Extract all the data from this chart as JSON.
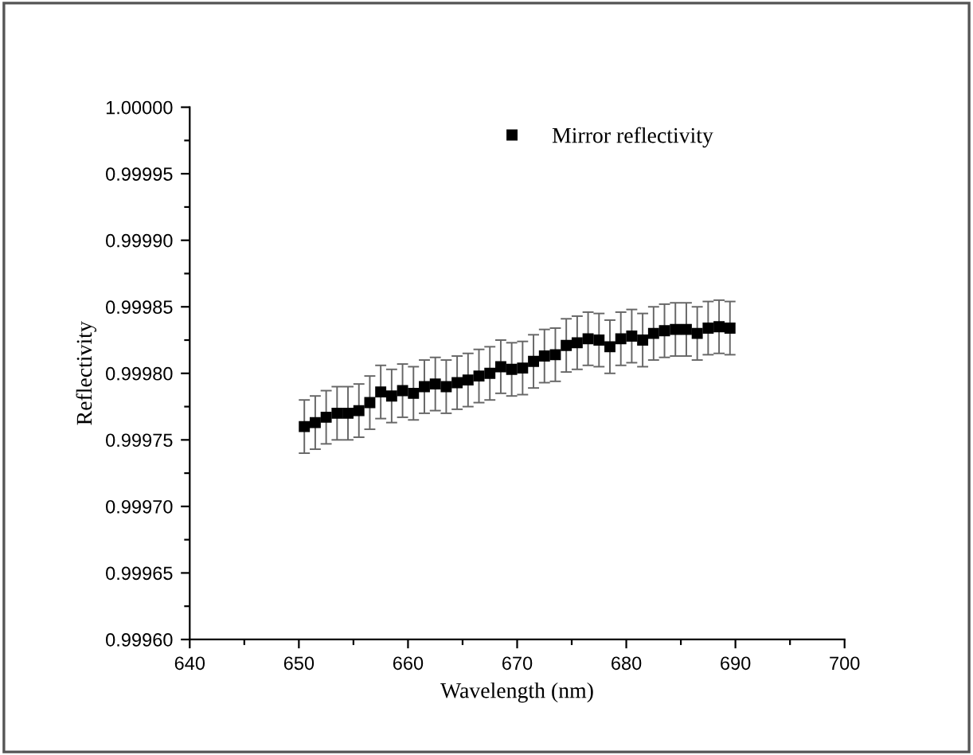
{
  "chart_data": {
    "type": "scatter",
    "xlabel": "Wavelength (nm)",
    "ylabel": "Reflectivity",
    "xlim": [
      640,
      700
    ],
    "xticks": [
      640,
      {
        "value": 645,
        "label": null
      },
      650,
      {
        "value": 655,
        "label": null
      },
      660,
      {
        "value": 665,
        "label": null
      },
      670,
      {
        "value": 675,
        "label": null
      },
      680,
      {
        "value": 685,
        "label": null
      },
      690,
      {
        "value": 695,
        "label": null
      },
      700
    ],
    "ylim": [
      0.9996,
      1.0
    ],
    "yticks": [
      {
        "value": 0.9996,
        "label": "0.99960"
      },
      {
        "value": 0.999625,
        "label": null
      },
      {
        "value": 0.99965,
        "label": "0.99965"
      },
      {
        "value": 0.999675,
        "label": null
      },
      {
        "value": 0.9997,
        "label": "0.99970"
      },
      {
        "value": 0.999725,
        "label": null
      },
      {
        "value": 0.99975,
        "label": "0.99975"
      },
      {
        "value": 0.999775,
        "label": null
      },
      {
        "value": 0.9998,
        "label": "0.99980"
      },
      {
        "value": 0.999825,
        "label": null
      },
      {
        "value": 0.99985,
        "label": "0.99985"
      },
      {
        "value": 0.999875,
        "label": null
      },
      {
        "value": 0.9999,
        "label": "0.99990"
      },
      {
        "value": 0.999925,
        "label": null
      },
      {
        "value": 0.99995,
        "label": "0.99995"
      },
      {
        "value": 0.999975,
        "label": null
      },
      {
        "value": 1.0,
        "label": "1.00000"
      }
    ],
    "grid": false,
    "legend": "top right",
    "marker": "square",
    "series": [
      {
        "name": "Mirror reflectivity",
        "color": "#000000",
        "x": [
          650.5,
          651.5,
          652.5,
          653.5,
          654.5,
          655.5,
          656.5,
          657.5,
          658.5,
          659.5,
          660.5,
          661.5,
          662.5,
          663.5,
          664.5,
          665.5,
          666.5,
          667.5,
          668.5,
          669.5,
          670.5,
          671.5,
          672.5,
          673.5,
          674.5,
          675.5,
          676.5,
          677.5,
          678.5,
          679.5,
          680.5,
          681.5,
          682.5,
          683.5,
          684.5,
          685.5,
          686.5,
          687.5,
          688.5,
          689.5
        ],
        "values": [
          0.99976,
          0.999763,
          0.999767,
          0.99977,
          0.99977,
          0.999772,
          0.999778,
          0.999786,
          0.999783,
          0.999787,
          0.999785,
          0.99979,
          0.999792,
          0.99979,
          0.999793,
          0.999795,
          0.999798,
          0.9998,
          0.999805,
          0.999803,
          0.999804,
          0.999809,
          0.999813,
          0.999814,
          0.999821,
          0.999823,
          0.999826,
          0.999825,
          0.99982,
          0.999826,
          0.999828,
          0.999825,
          0.99983,
          0.999832,
          0.999833,
          0.999833,
          0.99983,
          0.999834,
          0.999835,
          0.999834
        ],
        "errors": [
          2e-05,
          2e-05,
          2e-05,
          2e-05,
          2e-05,
          2e-05,
          2e-05,
          2e-05,
          2e-05,
          2e-05,
          2e-05,
          2e-05,
          2e-05,
          2e-05,
          2e-05,
          2e-05,
          2e-05,
          2e-05,
          2e-05,
          2e-05,
          2e-05,
          2e-05,
          2e-05,
          2e-05,
          2e-05,
          2e-05,
          2e-05,
          2e-05,
          2e-05,
          2e-05,
          2e-05,
          2e-05,
          2e-05,
          2e-05,
          2e-05,
          2e-05,
          2e-05,
          2e-05,
          2e-05,
          2e-05
        ]
      }
    ]
  }
}
